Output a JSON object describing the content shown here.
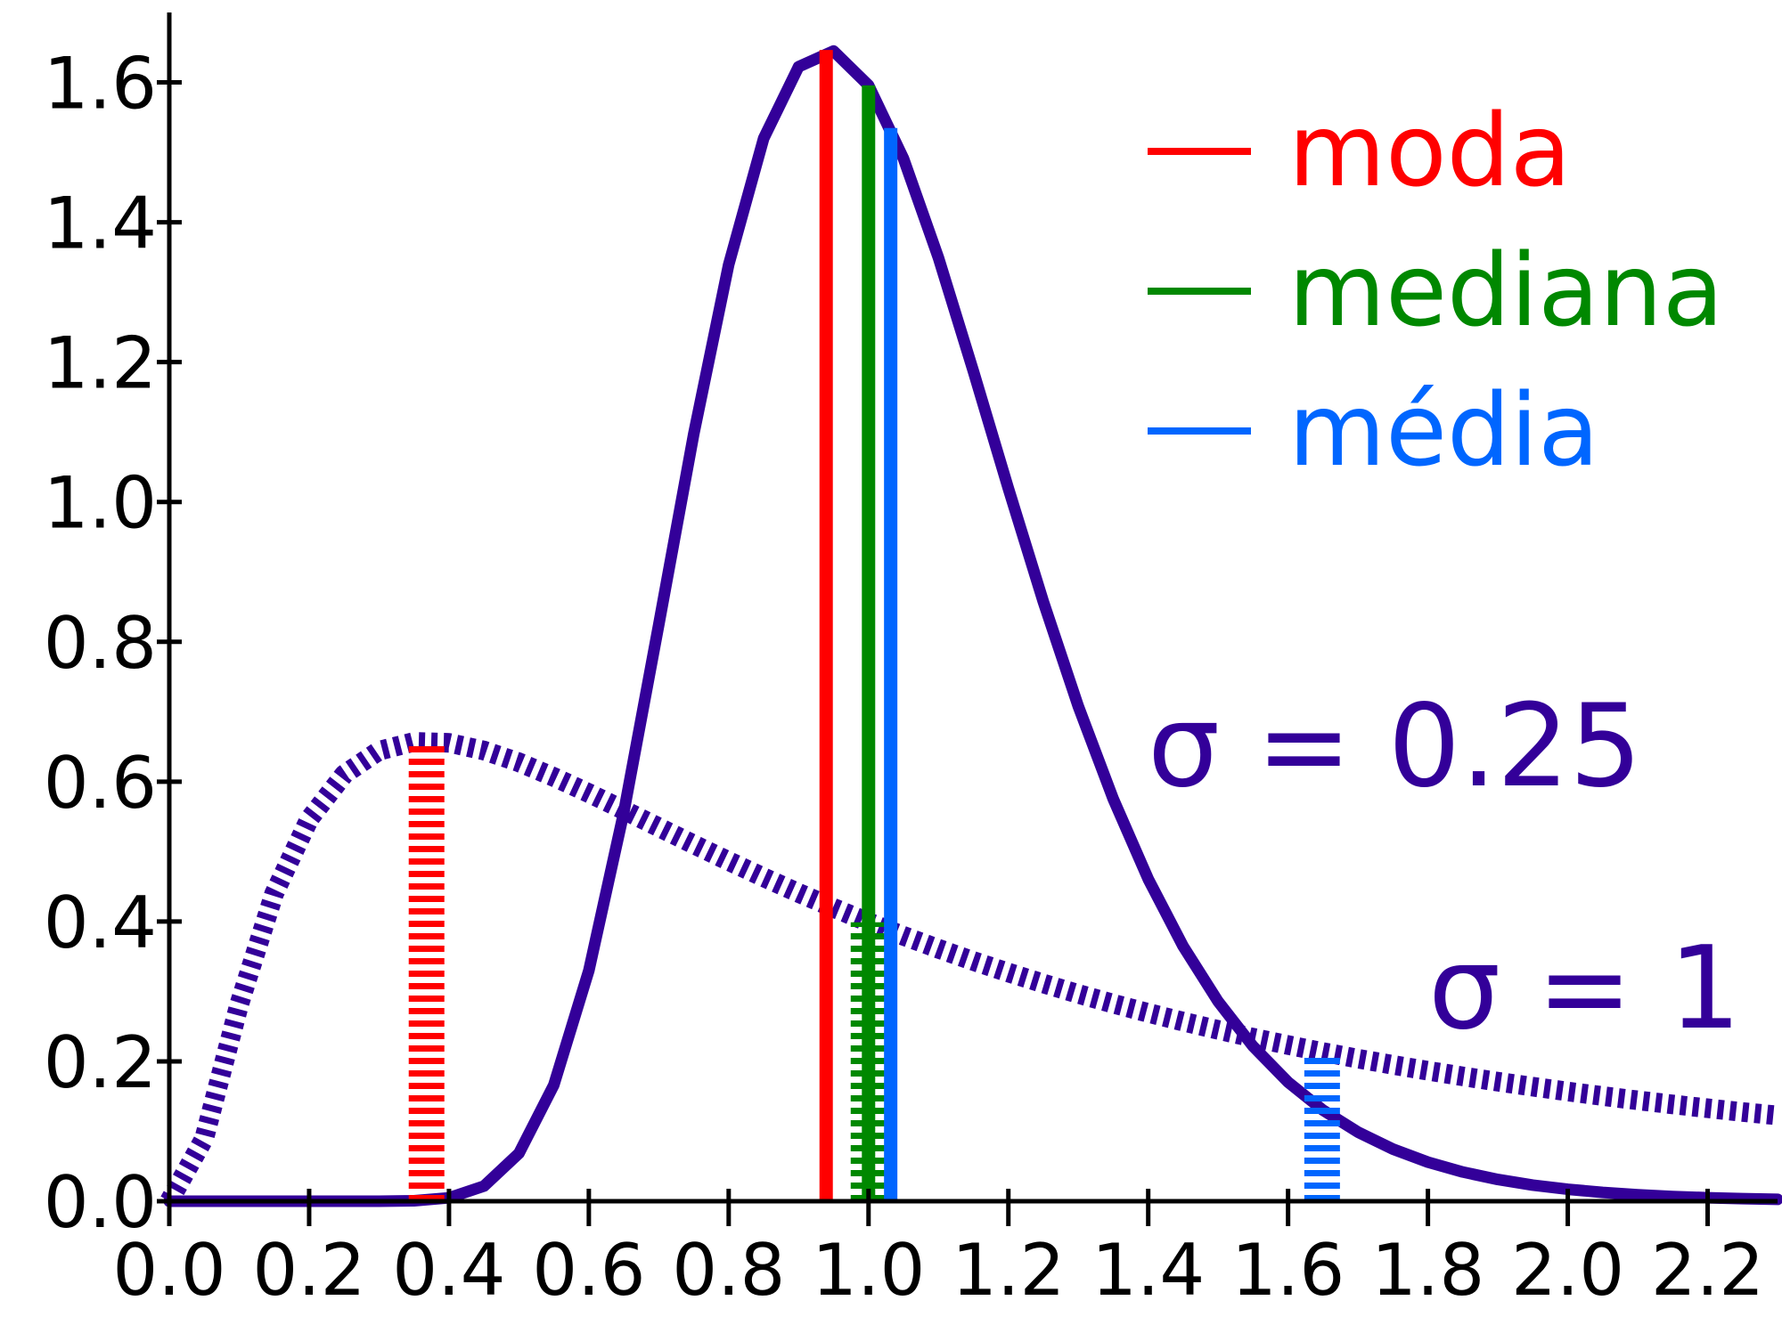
{
  "chart_data": {
    "type": "line",
    "x": [
      0,
      0.05,
      0.1,
      0.15,
      0.2,
      0.25,
      0.3,
      0.35,
      0.4,
      0.45,
      0.5,
      0.55,
      0.6,
      0.65,
      0.7,
      0.75,
      0.8,
      0.85,
      0.9,
      0.95,
      1.0,
      1.05,
      1.1,
      1.15,
      1.2,
      1.25,
      1.3,
      1.35,
      1.4,
      1.45,
      1.5,
      1.55,
      1.6,
      1.65,
      1.7,
      1.75,
      1.8,
      1.85,
      1.9,
      1.95,
      2.0,
      2.05,
      2.1,
      2.15,
      2.2,
      2.25,
      2.3
    ],
    "series": [
      {
        "name": "σ = 0.25",
        "color": "#330099",
        "dashed": false,
        "values": [
          0,
          0,
          0,
          0,
          0,
          0,
          0,
          0.0007,
          0.0048,
          0.0216,
          0.0684,
          0.1663,
          0.3299,
          0.5561,
          0.8241,
          1.097,
          1.3393,
          1.5199,
          1.6224,
          1.6449,
          1.5958,
          1.4911,
          1.349,
          1.1868,
          1.0193,
          0.8573,
          0.7077,
          0.5751,
          0.4607,
          0.3646,
          0.2855,
          0.2214,
          0.1703,
          0.1301,
          0.0988,
          0.0745,
          0.0559,
          0.0418,
          0.0311,
          0.0231,
          0.0171,
          0.0126,
          0.0093,
          0.0068,
          0.005,
          0.0037,
          0.0027
        ]
      },
      {
        "name": "σ = 1",
        "color": "#330099",
        "dashed": true,
        "values": [
          0,
          0.0898,
          0.2815,
          0.4399,
          0.5463,
          0.6104,
          0.6442,
          0.657,
          0.6555,
          0.6445,
          0.6276,
          0.6067,
          0.5836,
          0.5594,
          0.5348,
          0.5103,
          0.4864,
          0.4632,
          0.4408,
          0.4194,
          0.3989,
          0.3795,
          0.361,
          0.3435,
          0.327,
          0.3113,
          0.2965,
          0.2825,
          0.2693,
          0.2568,
          0.245,
          0.2338,
          0.2233,
          0.2133,
          0.2039,
          0.1949,
          0.1865,
          0.1785,
          0.1709,
          0.1637,
          0.1569,
          0.1504,
          0.1443,
          0.1384,
          0.1329,
          0.1276,
          0.1226
        ]
      }
    ],
    "stats": [
      {
        "name": "moda",
        "color": "#ff0000",
        "x": [
          0.9394,
          0.3679
        ],
        "y": [
          1.6464,
          0.6577
        ]
      },
      {
        "name": "mediana",
        "color": "#008800",
        "x": [
          1.0,
          1.0
        ],
        "y": [
          1.5958,
          0.3989
        ]
      },
      {
        "name": "média",
        "color": "#0066ff",
        "x": [
          1.0317,
          1.6487
        ],
        "y": [
          1.5347,
          0.2135
        ]
      }
    ],
    "xlim": [
      0,
      2.3
    ],
    "ylim": [
      0,
      1.7
    ],
    "xticks": [
      {
        "value": 0,
        "label": "0.0"
      },
      0.2,
      0.4,
      0.6,
      0.8,
      {
        "value": 1,
        "label": "1.0"
      },
      1.2,
      1.4,
      1.6,
      1.8,
      {
        "value": 2,
        "label": "2.0"
      },
      2.2
    ],
    "yticks": [
      {
        "value": 0,
        "label": "0.0"
      },
      0.2,
      0.4,
      0.6,
      0.8,
      {
        "value": 1,
        "label": "1.0"
      },
      1.2,
      1.4,
      1.6
    ]
  }
}
